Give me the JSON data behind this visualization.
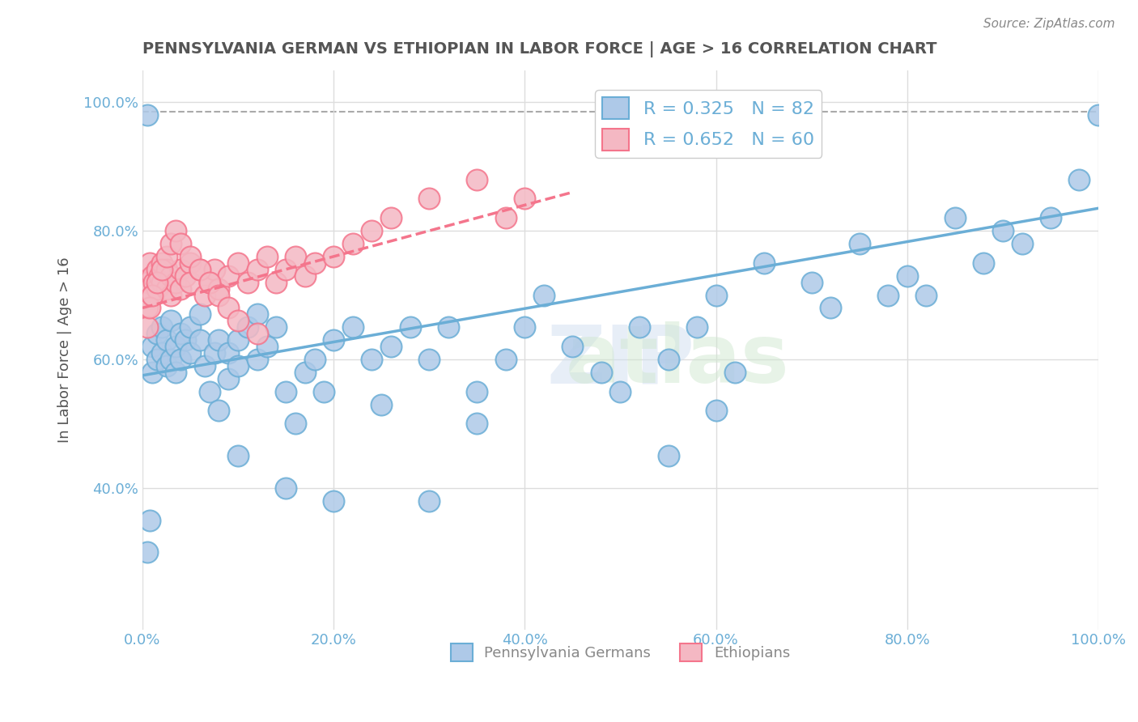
{
  "title": "PENNSYLVANIA GERMAN VS ETHIOPIAN IN LABOR FORCE | AGE > 16 CORRELATION CHART",
  "source": "Source: ZipAtlas.com",
  "xlabel": "",
  "ylabel": "In Labor Force | Age > 16",
  "legend_labels": [
    "Pennsylvania Germans",
    "Ethiopians"
  ],
  "legend_r_n": [
    {
      "r": 0.325,
      "n": 82,
      "color": "#6baed6"
    },
    {
      "r": 0.652,
      "n": 60,
      "color": "#fa9fb5"
    }
  ],
  "xlim": [
    0.0,
    1.0
  ],
  "ylim": [
    0.18,
    1.05
  ],
  "xticks": [
    0.0,
    0.2,
    0.4,
    0.6,
    0.8,
    1.0
  ],
  "xtick_labels": [
    "0.0%",
    "20.0%",
    "40.0%",
    "60.0%",
    "80.0%",
    "100.0%"
  ],
  "yticks": [
    0.4,
    0.6,
    0.8,
    1.0
  ],
  "ytick_labels": [
    "40.0%",
    "60.0%",
    "80.0%",
    "100.0%"
  ],
  "blue_scatter_x": [
    0.01,
    0.01,
    0.015,
    0.015,
    0.02,
    0.02,
    0.025,
    0.025,
    0.03,
    0.03,
    0.035,
    0.035,
    0.04,
    0.04,
    0.045,
    0.05,
    0.05,
    0.06,
    0.06,
    0.065,
    0.07,
    0.075,
    0.08,
    0.09,
    0.09,
    0.1,
    0.1,
    0.11,
    0.12,
    0.12,
    0.13,
    0.14,
    0.15,
    0.16,
    0.17,
    0.18,
    0.19,
    0.2,
    0.22,
    0.24,
    0.26,
    0.28,
    0.3,
    0.32,
    0.35,
    0.38,
    0.4,
    0.42,
    0.45,
    0.48,
    0.5,
    0.52,
    0.55,
    0.58,
    0.6,
    0.62,
    0.65,
    0.7,
    0.72,
    0.75,
    0.78,
    0.8,
    0.82,
    0.85,
    0.88,
    0.9,
    0.92,
    0.95,
    0.98,
    1.0,
    0.005,
    0.005,
    0.008,
    0.55,
    0.6,
    0.3,
    0.2,
    0.15,
    0.1,
    0.08,
    0.25,
    0.35
  ],
  "blue_scatter_y": [
    0.62,
    0.58,
    0.64,
    0.6,
    0.65,
    0.61,
    0.63,
    0.59,
    0.66,
    0.6,
    0.62,
    0.58,
    0.64,
    0.6,
    0.63,
    0.65,
    0.61,
    0.67,
    0.63,
    0.59,
    0.55,
    0.61,
    0.63,
    0.57,
    0.61,
    0.59,
    0.63,
    0.65,
    0.67,
    0.6,
    0.62,
    0.65,
    0.55,
    0.5,
    0.58,
    0.6,
    0.55,
    0.63,
    0.65,
    0.6,
    0.62,
    0.65,
    0.6,
    0.65,
    0.55,
    0.6,
    0.65,
    0.7,
    0.62,
    0.58,
    0.55,
    0.65,
    0.6,
    0.65,
    0.7,
    0.58,
    0.75,
    0.72,
    0.68,
    0.78,
    0.7,
    0.73,
    0.7,
    0.82,
    0.75,
    0.8,
    0.78,
    0.82,
    0.88,
    0.98,
    0.98,
    0.3,
    0.35,
    0.45,
    0.52,
    0.38,
    0.38,
    0.4,
    0.45,
    0.52,
    0.53,
    0.5
  ],
  "pink_scatter_x": [
    0.005,
    0.005,
    0.008,
    0.01,
    0.01,
    0.012,
    0.015,
    0.015,
    0.018,
    0.02,
    0.02,
    0.025,
    0.025,
    0.03,
    0.03,
    0.035,
    0.04,
    0.04,
    0.045,
    0.05,
    0.05,
    0.06,
    0.065,
    0.07,
    0.075,
    0.08,
    0.09,
    0.1,
    0.11,
    0.12,
    0.13,
    0.14,
    0.15,
    0.16,
    0.17,
    0.18,
    0.2,
    0.22,
    0.24,
    0.26,
    0.3,
    0.35,
    0.38,
    0.4,
    0.005,
    0.008,
    0.01,
    0.015,
    0.02,
    0.025,
    0.03,
    0.035,
    0.04,
    0.05,
    0.06,
    0.07,
    0.08,
    0.09,
    0.1,
    0.12
  ],
  "pink_scatter_y": [
    0.72,
    0.68,
    0.75,
    0.7,
    0.73,
    0.72,
    0.74,
    0.71,
    0.73,
    0.75,
    0.72,
    0.74,
    0.71,
    0.73,
    0.7,
    0.72,
    0.74,
    0.71,
    0.73,
    0.75,
    0.72,
    0.74,
    0.7,
    0.72,
    0.74,
    0.71,
    0.73,
    0.75,
    0.72,
    0.74,
    0.76,
    0.72,
    0.74,
    0.76,
    0.73,
    0.75,
    0.76,
    0.78,
    0.8,
    0.82,
    0.85,
    0.88,
    0.82,
    0.85,
    0.65,
    0.68,
    0.7,
    0.72,
    0.74,
    0.76,
    0.78,
    0.8,
    0.78,
    0.76,
    0.74,
    0.72,
    0.7,
    0.68,
    0.66,
    0.64
  ],
  "blue_line_x": [
    0.0,
    1.0
  ],
  "blue_line_y_intercept": 0.575,
  "blue_line_slope": 0.26,
  "pink_line_x": [
    0.0,
    0.45
  ],
  "pink_line_y_intercept": 0.68,
  "pink_line_slope": 0.4,
  "dashed_line_y": 0.985,
  "watermark": "ZIPatlas",
  "blue_color": "#6baed6",
  "blue_scatter_color": "#aec9e8",
  "pink_color": "#f4758c",
  "pink_scatter_color": "#f4b8c3",
  "title_color": "#555555",
  "axis_color": "#888888",
  "tick_color": "#6baed6",
  "legend_border_color": "#cccccc",
  "grid_color": "#dddddd",
  "background_color": "#ffffff"
}
